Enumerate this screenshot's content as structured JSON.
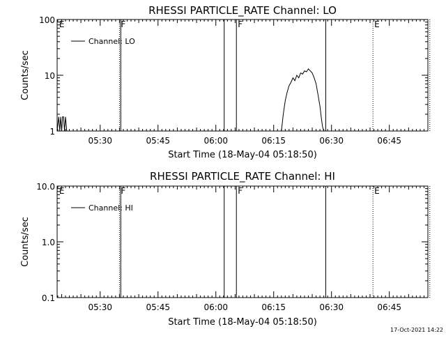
{
  "chart_data": [
    {
      "type": "line",
      "title": "RHESSI PARTICLE_RATE Channel: LO",
      "xlabel": "Start Time (18-May-04 05:18:50)",
      "ylabel": "Counts/sec",
      "y_scale": "log",
      "ylim": [
        1,
        100
      ],
      "y_ticks": [
        1,
        10,
        100
      ],
      "y_tick_labels": [
        "1",
        "10",
        "100"
      ],
      "xlim": [
        "05:18:50",
        "06:55:00"
      ],
      "x_tick_labels": [
        "05:30",
        "05:45",
        "06:00",
        "06:15",
        "06:30",
        "06:45"
      ],
      "legend": {
        "label": "Channel: LO",
        "placement": "top-left"
      },
      "grid": false,
      "series": [
        {
          "name": "Channel: LO",
          "x": [
            "05:18:50",
            "05:19:15",
            "05:19:30",
            "05:19:45",
            "05:20:00",
            "05:20:15",
            "05:20:30",
            "05:20:45",
            "05:21:00",
            "05:21:20",
            "05:21:40",
            "05:22:00",
            "06:17:00",
            "06:17:30",
            "06:18:00",
            "06:18:30",
            "06:19:00",
            "06:19:30",
            "06:20:00",
            "06:20:30",
            "06:21:00",
            "06:21:30",
            "06:22:00",
            "06:22:30",
            "06:23:00",
            "06:23:30",
            "06:24:00",
            "06:24:30",
            "06:25:00",
            "06:25:30",
            "06:26:00",
            "06:26:30",
            "06:27:00",
            "06:27:20",
            "06:27:40",
            "06:28:00"
          ],
          "y": [
            1,
            1.8,
            1,
            1.8,
            1,
            1.8,
            1.8,
            1,
            1.8,
            1,
            1,
            1,
            1,
            2,
            3.5,
            5,
            6.5,
            7.5,
            9,
            8,
            10,
            9,
            11,
            10.5,
            12,
            11.5,
            13,
            12,
            11,
            9,
            7,
            4.5,
            2.8,
            1.8,
            1.2,
            1
          ]
        }
      ],
      "annotations": [
        {
          "text": "E",
          "time": "05:19:00",
          "style": "none"
        },
        {
          "text": "F",
          "time": "05:35:00",
          "style": "dotted"
        },
        {
          "text": "",
          "time": "05:35:20",
          "style": "solid"
        },
        {
          "text": "",
          "time": "06:02:10",
          "style": "solid"
        },
        {
          "text": "F",
          "time": "06:05:20",
          "style": "solid"
        },
        {
          "text": "",
          "time": "06:28:30",
          "style": "solid"
        },
        {
          "text": "E",
          "time": "06:40:45",
          "style": "dotted"
        },
        {
          "text": "",
          "time": "06:55:30",
          "style": "dotted"
        }
      ]
    },
    {
      "type": "line",
      "title": "RHESSI PARTICLE_RATE Channel: HI",
      "xlabel": "Start Time (18-May-04 05:18:50)",
      "ylabel": "Counts/sec",
      "y_scale": "log",
      "ylim": [
        0.1,
        10
      ],
      "y_ticks": [
        0.1,
        1,
        10
      ],
      "y_tick_labels": [
        "0.1",
        "1.0",
        "10.0"
      ],
      "xlim": [
        "05:18:50",
        "06:55:00"
      ],
      "x_tick_labels": [
        "05:30",
        "05:45",
        "06:00",
        "06:15",
        "06:30",
        "06:45"
      ],
      "legend": {
        "label": "Channel: HI",
        "placement": "top-left"
      },
      "grid": false,
      "series": [],
      "annotations": [
        {
          "text": "E",
          "time": "05:19:00",
          "style": "none"
        },
        {
          "text": "F",
          "time": "05:35:00",
          "style": "dotted"
        },
        {
          "text": "",
          "time": "05:35:20",
          "style": "solid"
        },
        {
          "text": "",
          "time": "06:02:10",
          "style": "solid"
        },
        {
          "text": "F",
          "time": "06:05:20",
          "style": "solid"
        },
        {
          "text": "",
          "time": "06:28:30",
          "style": "solid"
        },
        {
          "text": "E",
          "time": "06:40:45",
          "style": "dotted"
        },
        {
          "text": "",
          "time": "06:55:30",
          "style": "dotted"
        }
      ]
    }
  ],
  "timestamp": "17-Oct-2021 14:22"
}
